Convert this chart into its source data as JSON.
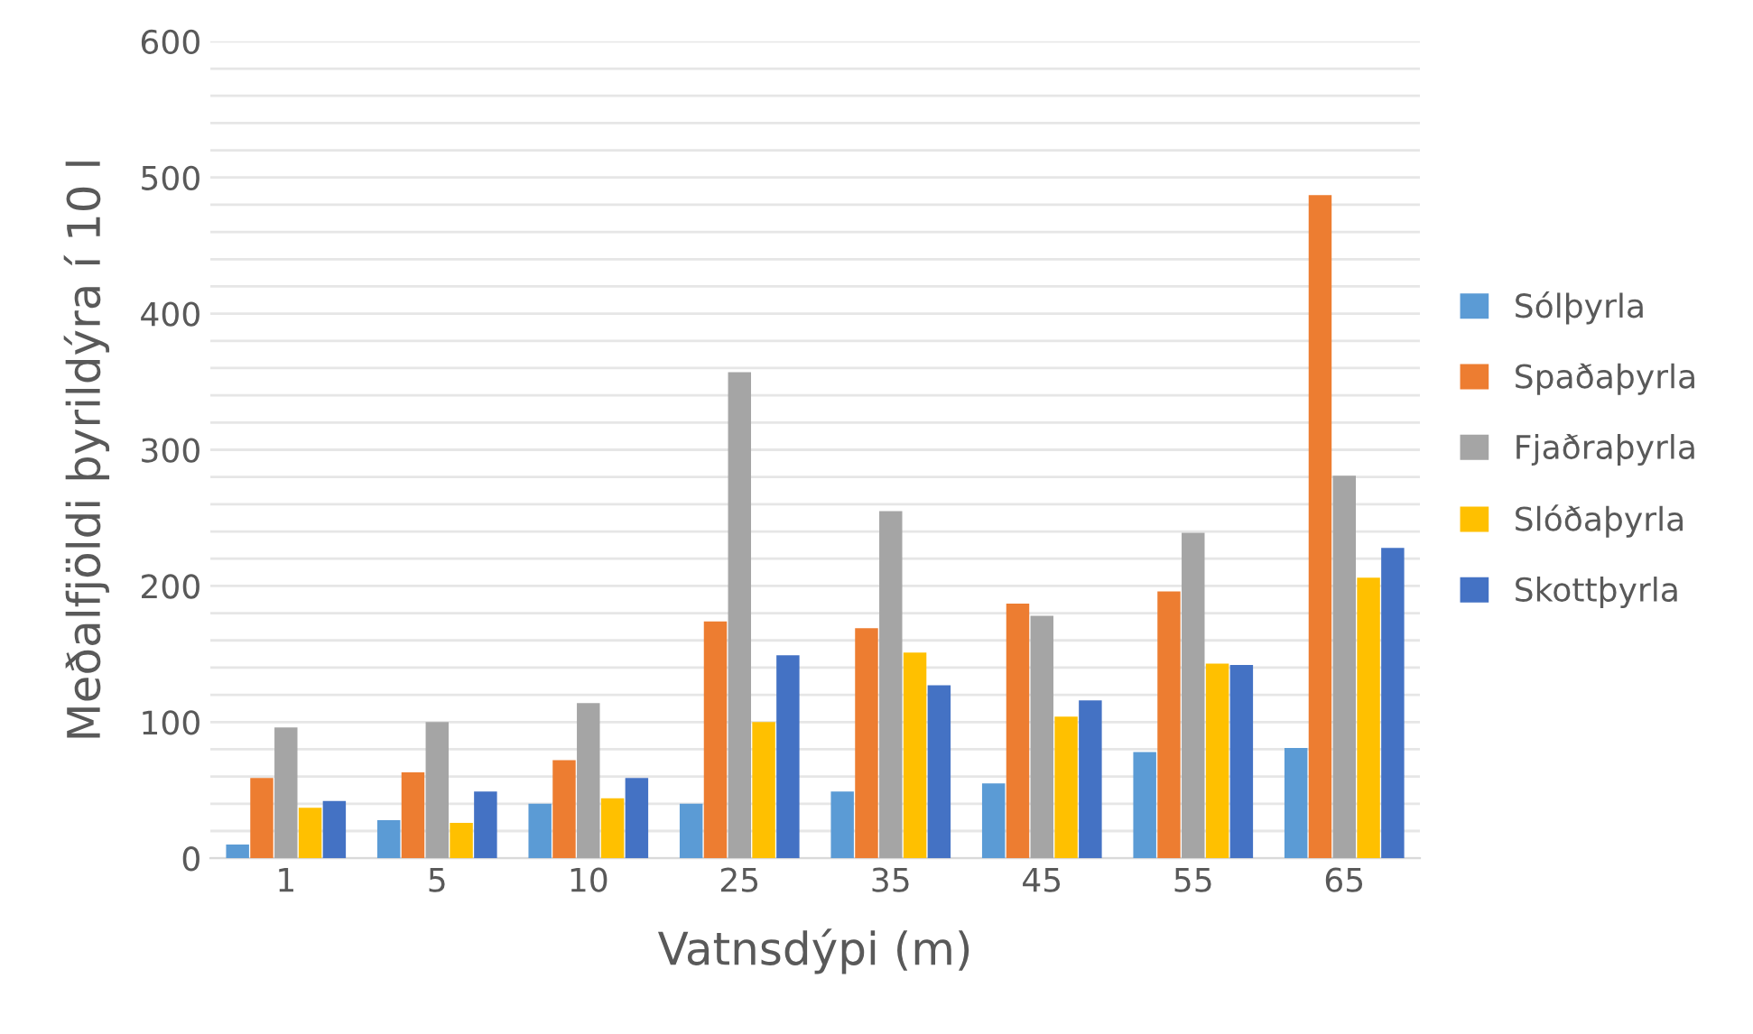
{
  "chart_data": {
    "type": "bar",
    "xlabel": "Vatnsdýpi (m)",
    "ylabel": "Meðalfjöldi þyrildýra í 10 l",
    "categories": [
      "1",
      "5",
      "10",
      "25",
      "35",
      "45",
      "55",
      "65"
    ],
    "series": [
      {
        "name": "Sólþyrla",
        "color": "#5b9bd5",
        "values": [
          10,
          28,
          40,
          40,
          49,
          55,
          78,
          81
        ]
      },
      {
        "name": "Spaðaþyrla",
        "color": "#ed7d31",
        "values": [
          59,
          63,
          72,
          174,
          169,
          187,
          196,
          487
        ]
      },
      {
        "name": "Fjaðraþyrla",
        "color": "#a5a5a5",
        "values": [
          96,
          100,
          114,
          357,
          255,
          178,
          239,
          281
        ]
      },
      {
        "name": "Slóðaþyrla",
        "color": "#ffc000",
        "values": [
          37,
          26,
          44,
          100,
          151,
          104,
          143,
          206
        ]
      },
      {
        "name": "Skottþyrla",
        "color": "#4472c4",
        "values": [
          42,
          49,
          59,
          149,
          127,
          116,
          142,
          228
        ]
      }
    ],
    "ylim": [
      0,
      600
    ],
    "yticks": [
      0,
      {
        "value": 20,
        "label": null
      },
      {
        "value": 40,
        "label": null
      },
      {
        "value": 60,
        "label": null
      },
      {
        "value": 80,
        "label": null
      },
      100,
      {
        "value": 120,
        "label": null
      },
      {
        "value": 140,
        "label": null
      },
      {
        "value": 160,
        "label": null
      },
      {
        "value": 180,
        "label": null
      },
      200,
      {
        "value": 220,
        "label": null
      },
      {
        "value": 240,
        "label": null
      },
      {
        "value": 260,
        "label": null
      },
      {
        "value": 280,
        "label": null
      },
      300,
      {
        "value": 320,
        "label": null
      },
      {
        "value": 340,
        "label": null
      },
      {
        "value": 360,
        "label": null
      },
      {
        "value": 380,
        "label": null
      },
      400,
      {
        "value": 420,
        "label": null
      },
      {
        "value": 440,
        "label": null
      },
      {
        "value": 460,
        "label": null
      },
      {
        "value": 480,
        "label": null
      },
      500,
      {
        "value": 520,
        "label": null
      },
      {
        "value": 540,
        "label": null
      },
      {
        "value": 560,
        "label": null
      },
      {
        "value": 580,
        "label": null
      },
      600
    ],
    "grid": "y",
    "legend": "right"
  }
}
